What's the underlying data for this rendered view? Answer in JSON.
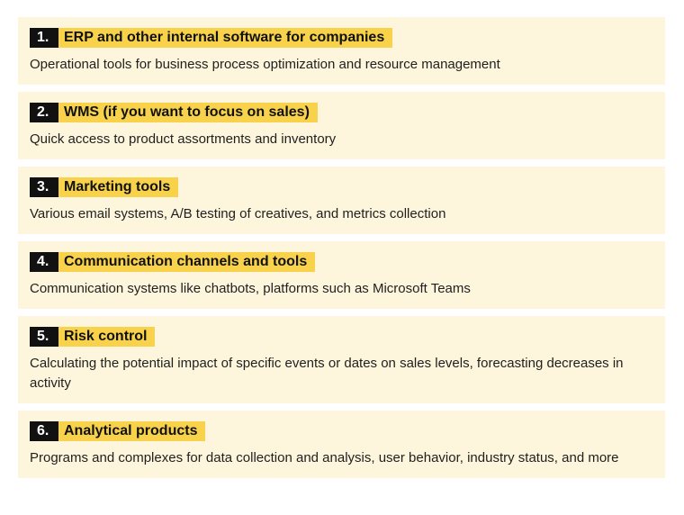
{
  "items": [
    {
      "number": "1.",
      "title": "ERP and other internal software for companies",
      "description": "Operational tools for business process optimization and resource management"
    },
    {
      "number": "2.",
      "title": "WMS (if you want to focus on sales)",
      "description": "Quick access to product assortments and inventory"
    },
    {
      "number": "3.",
      "title": "Marketing tools",
      "description": "Various email systems, A/B testing of creatives, and metrics collection"
    },
    {
      "number": "4.",
      "title": "Communication channels and tools",
      "description": "Communication systems like chatbots, platforms such as Microsoft Teams"
    },
    {
      "number": "5.",
      "title": "Risk control",
      "description": "Calculating the potential impact of specific events or dates on sales levels, forecasting decreases in activity"
    },
    {
      "number": "6.",
      "title": "Analytical products",
      "description": "Programs and complexes for data collection and analysis, user behavior, industry status, and more"
    }
  ],
  "colors": {
    "card_background": "#fdf6dc",
    "title_highlight": "#f7d24a",
    "number_badge": "#111111"
  }
}
